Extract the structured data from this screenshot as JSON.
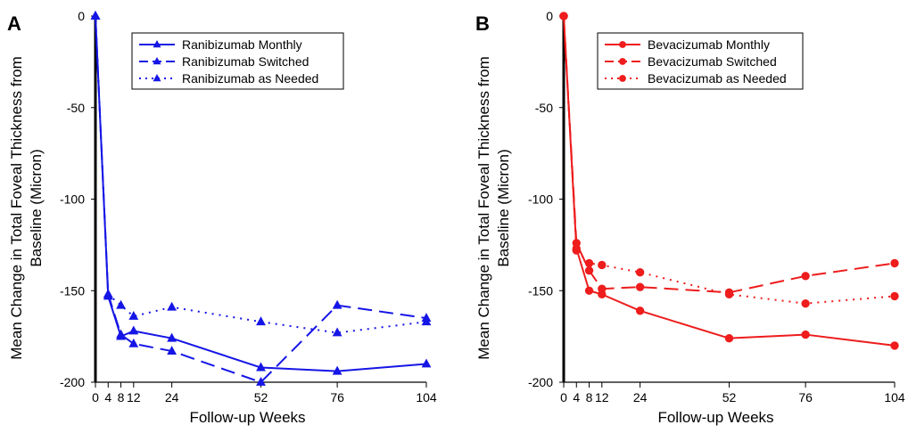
{
  "chart_data": [
    {
      "type": "line",
      "panel_label": "A",
      "xlabel": "Follow-up Weeks",
      "ylabel": [
        "Mean Change in Total Foveal Thickness from",
        "Baseline (Micron)"
      ],
      "x_ticks": [
        "0",
        "4",
        "8",
        "12",
        "24",
        "52",
        "76",
        "104"
      ],
      "y_ticks": [
        "0",
        "-50",
        "-100",
        "-150",
        "-200"
      ],
      "xlim": [
        0,
        104
      ],
      "ylim": [
        -200,
        0
      ],
      "color": "#1515e6",
      "marker": "triangle",
      "legend_position": "top-right",
      "series": [
        {
          "name": "Ranibizumab Monthly",
          "style": "solid",
          "x": [
            0,
            4,
            8,
            12,
            24,
            52,
            76,
            104
          ],
          "y": [
            0,
            -153,
            -175,
            -172,
            -176,
            -192,
            -194,
            -190
          ]
        },
        {
          "name": "Ranibizumab Switched",
          "style": "dashed",
          "x": [
            0,
            4,
            8,
            12,
            24,
            52,
            76,
            104
          ],
          "y": [
            0,
            -152,
            -174,
            -179,
            -183,
            -200,
            -158,
            -165
          ]
        },
        {
          "name": "Ranibizumab as Needed",
          "style": "dotted",
          "x": [
            0,
            4,
            8,
            12,
            24,
            52,
            76,
            104
          ],
          "y": [
            0,
            -152,
            -158,
            -164,
            -159,
            -167,
            -173,
            -167
          ]
        }
      ]
    },
    {
      "type": "line",
      "panel_label": "B",
      "xlabel": "Follow-up Weeks",
      "ylabel": [
        "Mean Change in Total Foveal Thickness from",
        "Baseline (Micron)"
      ],
      "x_ticks": [
        "0",
        "4",
        "8",
        "12",
        "24",
        "52",
        "76",
        "104"
      ],
      "y_ticks": [
        "0",
        "-50",
        "-100",
        "-150",
        "-200"
      ],
      "xlim": [
        0,
        104
      ],
      "ylim": [
        -200,
        0
      ],
      "color": "#ee1c1c",
      "marker": "circle",
      "legend_position": "top-right",
      "series": [
        {
          "name": "Bevacizumab Monthly",
          "style": "solid",
          "x": [
            0,
            4,
            8,
            12,
            24,
            52,
            76,
            104
          ],
          "y": [
            0,
            -127,
            -150,
            -152,
            -161,
            -176,
            -174,
            -180
          ]
        },
        {
          "name": "Bevacizumab Switched",
          "style": "dashed",
          "x": [
            0,
            4,
            8,
            12,
            24,
            52,
            76,
            104
          ],
          "y": [
            0,
            -124,
            -139,
            -149,
            -148,
            -151,
            -142,
            -135
          ]
        },
        {
          "name": "Bevacizumab as Needed",
          "style": "dotted",
          "x": [
            0,
            4,
            8,
            12,
            24,
            52,
            76,
            104
          ],
          "y": [
            0,
            -128,
            -135,
            -136,
            -140,
            -152,
            -157,
            -153
          ]
        }
      ]
    }
  ]
}
